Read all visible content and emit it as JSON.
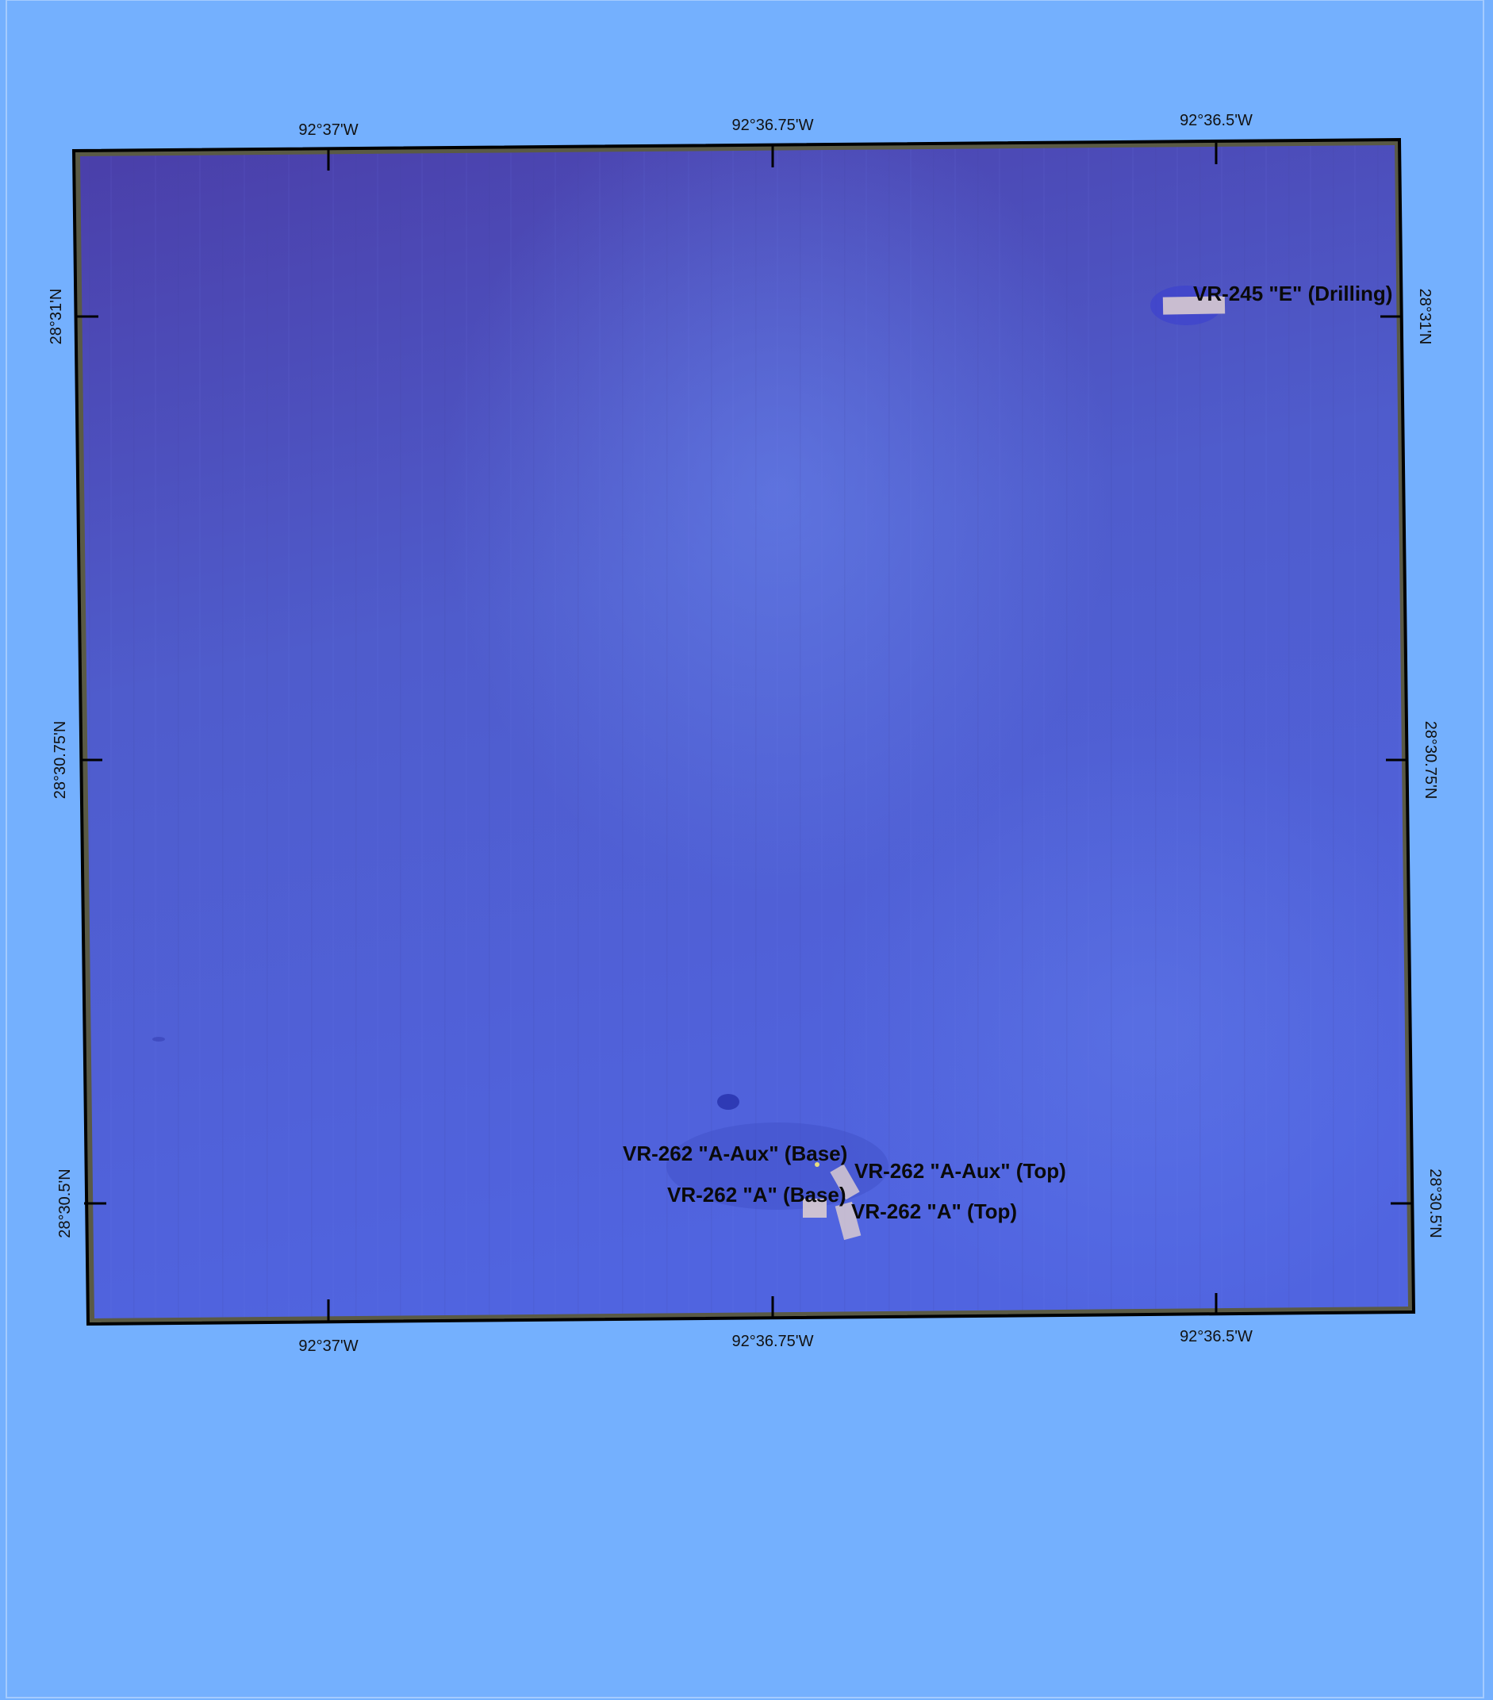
{
  "map": {
    "background_color": "#74b0fe",
    "seafloor_color_dark": "#4a3ea8",
    "seafloor_color_light": "#5a70e6",
    "frame_color": "#000000",
    "neatline_color": "#5a5a45",
    "feature_fill_color": "#d8cad0",
    "longitude_labels_top": [
      "92°37'W",
      "92°36.75'W",
      "92°36.5'W"
    ],
    "longitude_labels_bottom": [
      "92°37'W",
      "92°36.75'W",
      "92°36.5'W"
    ],
    "latitude_labels_left": [
      "28°31'N",
      "28°30.75'N",
      "28°30.5'N"
    ],
    "latitude_labels_right": [
      "28°31'N",
      "28°30.75'N",
      "28°30.5'N"
    ],
    "features": [
      {
        "id": "vr245-e",
        "label": "VR-245 \"E\" (Drilling)"
      },
      {
        "id": "vr262-a-aux-base",
        "label": "VR-262 \"A-Aux\" (Base)"
      },
      {
        "id": "vr262-a-aux-top",
        "label": "VR-262 \"A-Aux\" (Top)"
      },
      {
        "id": "vr262-a-base",
        "label": "VR-262 \"A\" (Base)"
      },
      {
        "id": "vr262-a-top",
        "label": "VR-262 \"A\" (Top)"
      }
    ]
  }
}
